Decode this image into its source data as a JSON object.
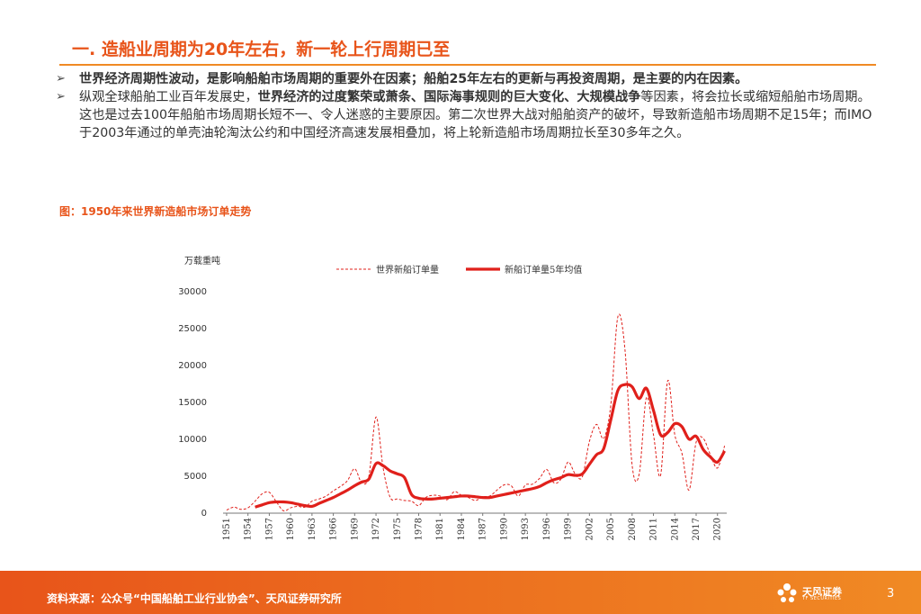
{
  "header": {
    "title": "一. 造船业周期为20年左右，新一轮上行周期已至"
  },
  "bullets": {
    "b1_bold": "世界经济周期性波动，是影响船舶市场周期的重要外在因素；船舶25年左右的更新与再投资周期，是主要的内在因素。",
    "b2_pre": "纵观全球船舶工业百年发展史，",
    "b2_bold": "世界经济的过度繁荣或萧条、国际海事规则的巨大变化、大规模战争",
    "b2_post": "等因素，将会拉长或缩短船舶市场周期。这也是过去100年船舶市场周期长短不一、令人迷惑的主要原因。第二次世界大战对船舶资产的破坏，导致新造船市场周期不足15年；而IMO于2003年通过的单壳油轮淘汰公约和中国经济高速发展相叠加，将上轮新造船市场周期拉长至30多年之久。"
  },
  "figure": {
    "caption": "图：1950年来世界新造船市场订单走势"
  },
  "footer": {
    "source": "资料来源：公众号“中国船舶工业行业协会”、天风证券研究所",
    "logo_text": "天风证券",
    "logo_sub": "TF SECURITIES",
    "page_number": "3"
  },
  "colors": {
    "accent": "#e8541a",
    "series_color": "#e0201b",
    "footer_start": "#e8541a",
    "footer_end": "#f08a24"
  },
  "chart_data": {
    "type": "line",
    "title": "",
    "ylabel": "万载重吨",
    "xlabel": "",
    "ylim": [
      0,
      30000
    ],
    "yticks": [
      0,
      5000,
      10000,
      15000,
      20000,
      25000,
      30000
    ],
    "xticks": [
      1951,
      1954,
      1957,
      1960,
      1963,
      1966,
      1969,
      1972,
      1975,
      1978,
      1981,
      1984,
      1987,
      1990,
      1993,
      1996,
      1999,
      2002,
      2005,
      2008,
      2011,
      2014,
      2017,
      2020
    ],
    "legend_position": "top",
    "grid": false,
    "series": [
      {
        "name": "世界新船订单量",
        "style": "dashed",
        "x": [
          1951,
          1952,
          1953,
          1954,
          1955,
          1956,
          1957,
          1958,
          1959,
          1960,
          1961,
          1962,
          1963,
          1964,
          1965,
          1966,
          1967,
          1968,
          1969,
          1970,
          1971,
          1972,
          1973,
          1974,
          1975,
          1976,
          1977,
          1978,
          1979,
          1980,
          1981,
          1982,
          1983,
          1984,
          1985,
          1986,
          1987,
          1988,
          1989,
          1990,
          1991,
          1992,
          1993,
          1994,
          1995,
          1996,
          1997,
          1998,
          1999,
          2000,
          2001,
          2002,
          2003,
          2004,
          2005,
          2006,
          2007,
          2008,
          2009,
          2010,
          2011,
          2012,
          2013,
          2014,
          2015,
          2016,
          2017,
          2018,
          2019,
          2020,
          2021
        ],
        "values": [
          300,
          700,
          400,
          600,
          1500,
          2500,
          2700,
          1400,
          200,
          600,
          800,
          700,
          1500,
          1800,
          2200,
          2900,
          3500,
          4300,
          5900,
          4000,
          4900,
          12900,
          6000,
          2000,
          1800,
          1600,
          1500,
          900,
          2000,
          2300,
          2200,
          1700,
          2800,
          2300,
          2000,
          1600,
          2100,
          2200,
          3000,
          3700,
          3600,
          2200,
          3700,
          3800,
          4600,
          5800,
          4000,
          4500,
          6800,
          5200,
          4800,
          9600,
          11900,
          10000,
          14500,
          26500,
          22000,
          6400,
          5200,
          15500,
          10500,
          5000,
          17800,
          10500,
          8000,
          3000,
          9500,
          10000,
          7800,
          6000,
          9000
        ]
      },
      {
        "name": "新船订单量5年均值",
        "style": "solid",
        "x": [
          1955,
          1956,
          1957,
          1958,
          1959,
          1960,
          1961,
          1962,
          1963,
          1964,
          1965,
          1966,
          1967,
          1968,
          1969,
          1970,
          1971,
          1972,
          1973,
          1974,
          1975,
          1976,
          1977,
          1978,
          1979,
          1980,
          1981,
          1982,
          1983,
          1984,
          1985,
          1986,
          1987,
          1988,
          1989,
          1990,
          1991,
          1992,
          1993,
          1994,
          1995,
          1996,
          1997,
          1998,
          1999,
          2000,
          2001,
          2002,
          2003,
          2004,
          2005,
          2006,
          2007,
          2008,
          2009,
          2010,
          2011,
          2012,
          2013,
          2014,
          2015,
          2016,
          2017,
          2018,
          2019,
          2020,
          2021
        ],
        "values": [
          700,
          1000,
          1300,
          1400,
          1400,
          1300,
          1100,
          900,
          800,
          1200,
          1600,
          2000,
          2500,
          3000,
          3600,
          4100,
          4500,
          6600,
          6300,
          5600,
          5200,
          4700,
          2400,
          1900,
          1800,
          1800,
          1900,
          2000,
          2100,
          2200,
          2200,
          2100,
          2000,
          2000,
          2200,
          2400,
          2600,
          2800,
          3000,
          3200,
          3500,
          4000,
          4400,
          4700,
          5100,
          5000,
          5200,
          6500,
          7800,
          8600,
          12500,
          16500,
          17300,
          17000,
          15400,
          16800,
          13800,
          10500,
          10800,
          12000,
          11600,
          9900,
          10300,
          8500,
          7500,
          6800,
          8300
        ]
      }
    ]
  }
}
